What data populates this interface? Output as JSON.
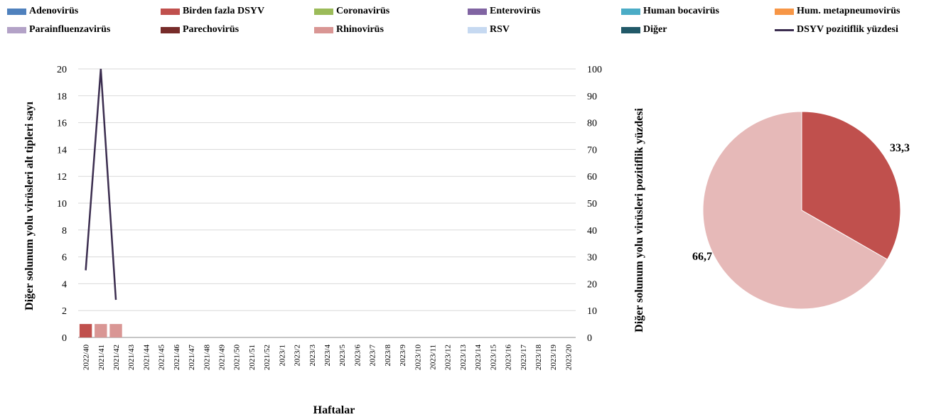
{
  "legend": [
    {
      "label": "Adenovirüs",
      "color": "#4f81bd",
      "kind": "box"
    },
    {
      "label": "Birden fazla DSYV",
      "color": "#c0504d",
      "kind": "box"
    },
    {
      "label": "Coronavirüs",
      "color": "#9bbb59",
      "kind": "box"
    },
    {
      "label": "Enterovirüs",
      "color": "#8064a2",
      "kind": "box"
    },
    {
      "label": "Human bocavirüs",
      "color": "#4bacc6",
      "kind": "box"
    },
    {
      "label": "Hum. metapneumovirüs",
      "color": "#f79646",
      "kind": "box"
    },
    {
      "label": "Parainfluenzavirüs",
      "color": "#b3a2c7",
      "kind": "box"
    },
    {
      "label": "Parechovirüs",
      "color": "#772c2a",
      "kind": "box"
    },
    {
      "label": "Rhinovirüs",
      "color": "#d99694",
      "kind": "box"
    },
    {
      "label": "RSV",
      "color": "#c6d9f1",
      "kind": "box"
    },
    {
      "label": "Diğer",
      "color": "#215968",
      "kind": "box"
    },
    {
      "label": "DSYV pozitiflik yüzdesi",
      "color": "#3b2d4f",
      "kind": "line"
    }
  ],
  "chart_data": [
    {
      "type": "bar",
      "xlabel": "Haftalar",
      "ylabel": "Diğer solunum yolu virüsleri alt tipleri sayı",
      "y2label": "Diğer solunum yolu virüsleri pozitiflik yüzdesi",
      "ylim": [
        0,
        20
      ],
      "yticks": [
        0,
        2,
        4,
        6,
        8,
        10,
        12,
        14,
        16,
        18,
        20
      ],
      "y2lim": [
        0,
        100
      ],
      "y2ticks": [
        0,
        10,
        20,
        30,
        40,
        50,
        60,
        70,
        80,
        90,
        100
      ],
      "grid": true,
      "legend_position": "top",
      "categories": [
        "2022/40",
        "2021/41",
        "2021/42",
        "2021/43",
        "2021/44",
        "2021/45",
        "2021/46",
        "2021/47",
        "2021/48",
        "2021/49",
        "2021/50",
        "2021/51",
        "2021/52",
        "2023/1",
        "2023/2",
        "2023/3",
        "2023/4",
        "2023/5",
        "2023/6",
        "2023/7",
        "2023/8",
        "2023/9",
        "2023/10",
        "2023/11",
        "2023/12",
        "2023/13",
        "2023/14",
        "2023/15",
        "2023/16",
        "2023/17",
        "2023/18",
        "2023/19",
        "2023/20"
      ],
      "series": [
        {
          "name": "Birden fazla DSYV",
          "color": "#c0504d",
          "values": [
            1,
            0,
            0,
            0,
            0,
            0,
            0,
            0,
            0,
            0,
            0,
            0,
            0,
            0,
            0,
            0,
            0,
            0,
            0,
            0,
            0,
            0,
            0,
            0,
            0,
            0,
            0,
            0,
            0,
            0,
            0,
            0,
            0
          ]
        },
        {
          "name": "Rhinovirüs",
          "color": "#d99694",
          "values": [
            0,
            1,
            1,
            0,
            0,
            0,
            0,
            0,
            0,
            0,
            0,
            0,
            0,
            0,
            0,
            0,
            0,
            0,
            0,
            0,
            0,
            0,
            0,
            0,
            0,
            0,
            0,
            0,
            0,
            0,
            0,
            0,
            0
          ]
        }
      ],
      "line": {
        "name": "DSYV pozitiflik yüzdesi",
        "color": "#3b2d4f",
        "axis": "secondary",
        "values": [
          25,
          100,
          14
        ]
      }
    },
    {
      "type": "pie",
      "slices": [
        {
          "label": "33,3",
          "value": 33.3,
          "color": "#c0504d"
        },
        {
          "label": "66,7",
          "value": 66.7,
          "color": "#e6b9b8"
        }
      ]
    }
  ]
}
